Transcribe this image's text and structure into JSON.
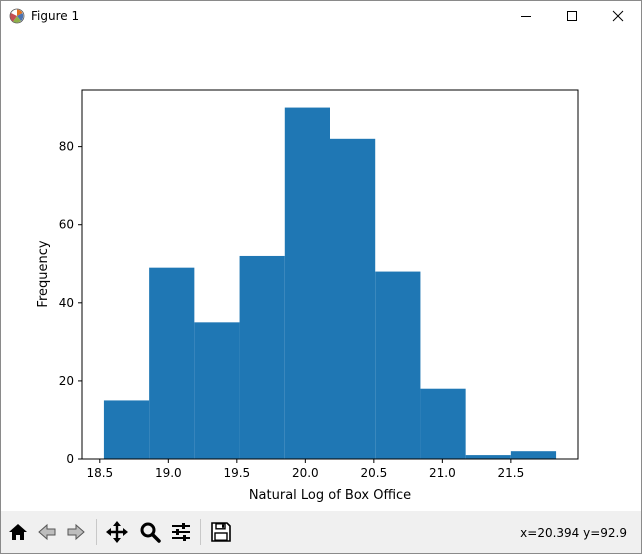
{
  "window": {
    "title": "Figure 1",
    "icons": {
      "app": "matplotlib-logo-icon",
      "minimize": "minimize-icon",
      "maximize": "maximize-icon",
      "close": "close-icon"
    }
  },
  "toolbar": {
    "buttons": [
      {
        "name": "home-button",
        "icon": "home-icon"
      },
      {
        "name": "back-button",
        "icon": "back-arrow-icon"
      },
      {
        "name": "forward-button",
        "icon": "forward-arrow-icon"
      },
      {
        "name": "pan-button",
        "icon": "move-arrows-icon"
      },
      {
        "name": "zoom-button",
        "icon": "magnifier-icon"
      },
      {
        "name": "configure-subplots-button",
        "icon": "sliders-icon"
      },
      {
        "name": "save-button",
        "icon": "floppy-disk-icon"
      }
    ],
    "coordinates": "x=20.394 y=92.9"
  },
  "chart_data": {
    "type": "bar",
    "bin_edges": [
      18.53,
      18.86,
      19.19,
      19.52,
      19.85,
      20.18,
      20.51,
      20.84,
      21.17,
      21.5,
      21.83
    ],
    "values": [
      15,
      49,
      35,
      52,
      90,
      82,
      48,
      18,
      1,
      2
    ],
    "bar_color": "#1f77b4",
    "xlabel": "Natural Log of Box Office",
    "ylabel": "Frequency",
    "xlim": [
      18.37,
      21.99
    ],
    "ylim": [
      0,
      94.5
    ],
    "xticks": [
      18.5,
      19.0,
      19.5,
      20.0,
      20.5,
      21.0,
      21.5
    ],
    "xtick_labels": [
      "18.5",
      "19.0",
      "19.5",
      "20.0",
      "20.5",
      "21.0",
      "21.5"
    ],
    "yticks": [
      0,
      20,
      40,
      60,
      80
    ],
    "ytick_labels": [
      "0",
      "20",
      "40",
      "60",
      "80"
    ],
    "grid": false,
    "legend": "none"
  }
}
